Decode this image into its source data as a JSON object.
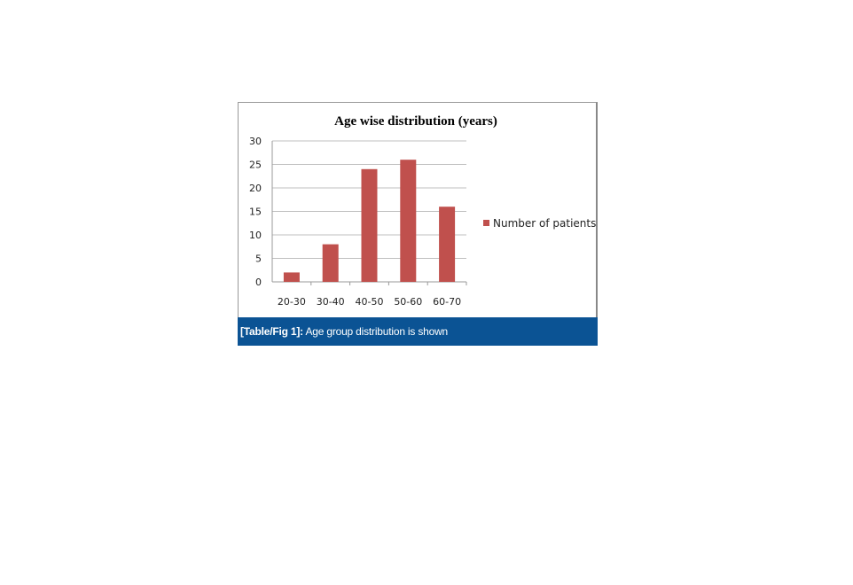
{
  "chart_data": {
    "type": "bar",
    "title": "Age wise distribution (years)",
    "categories": [
      "20-30",
      "30-40",
      "40-50",
      "50-60",
      "60-70"
    ],
    "series": [
      {
        "name": "Number of patients",
        "values": [
          2,
          8,
          24,
          26,
          16
        ],
        "color": "#c0504d"
      }
    ],
    "yticks": [
      0,
      5,
      10,
      15,
      20,
      25,
      30
    ],
    "ylim": [
      0,
      30
    ],
    "grid": true,
    "legend": "right"
  },
  "caption": {
    "label": "[Table/Fig 1]:",
    "text": " Age group distribution is shown"
  },
  "colors": {
    "caption_bg": "#0b5394",
    "gridline": "#bfbfbf"
  }
}
